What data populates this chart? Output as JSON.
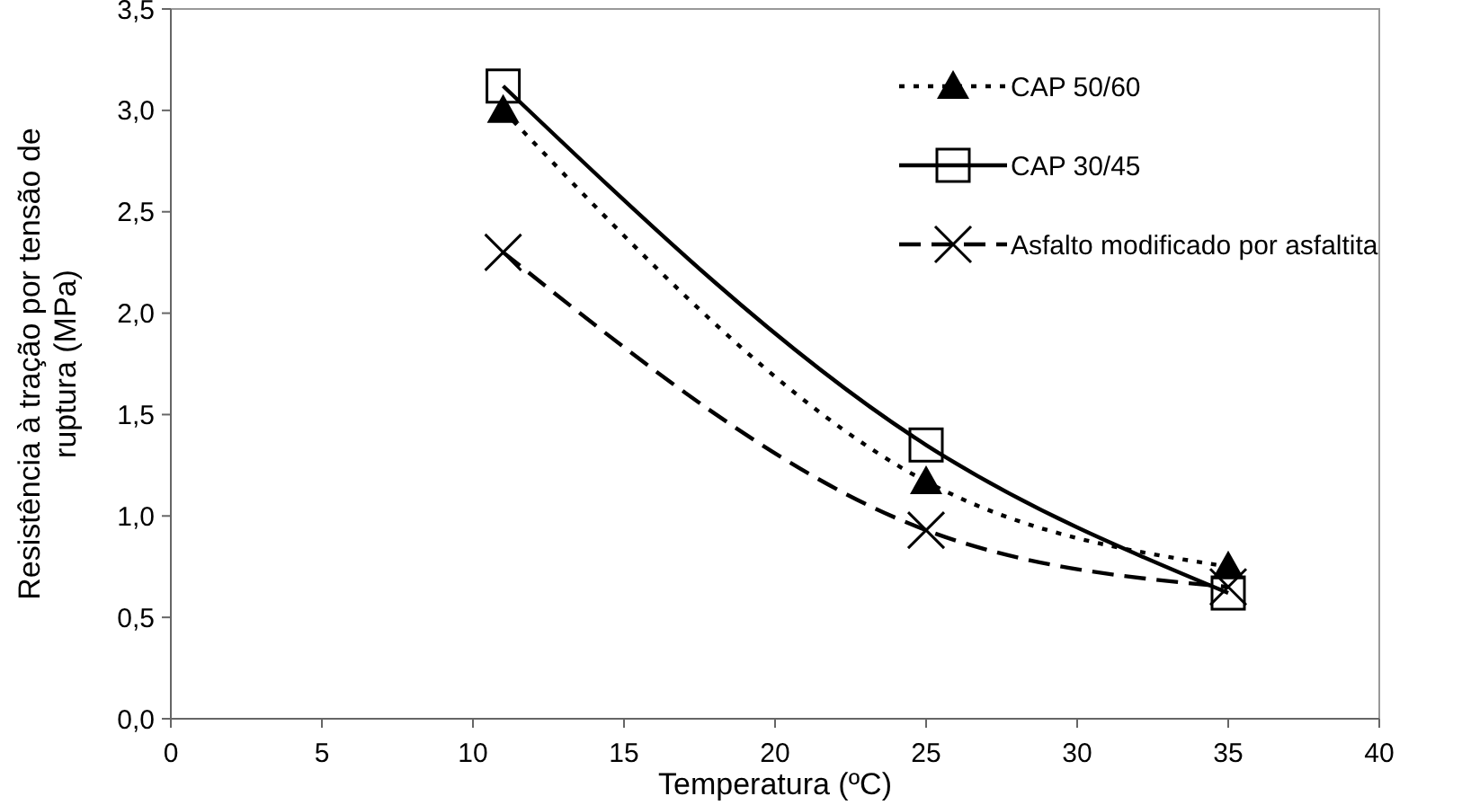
{
  "chart_data": {
    "type": "line",
    "xlabel": "Temperatura  (ºC)",
    "ylabel": "Resistência à tração por tensão de ruptura (MPa)",
    "x": [
      11,
      25,
      35
    ],
    "series": [
      {
        "name": "CAP 50/60",
        "color": "#000000",
        "values": [
          3.0,
          1.17,
          0.75
        ],
        "marker": "triangle",
        "line_style": "dotted"
      },
      {
        "name": "CAP 30/45",
        "color": "#000000",
        "values": [
          3.12,
          1.35,
          0.62
        ],
        "marker": "square",
        "line_style": "solid"
      },
      {
        "name": "Asfalto modificado por asfaltita",
        "color": "#000000",
        "values": [
          2.3,
          0.93,
          0.65
        ],
        "marker": "cross",
        "line_style": "dashed"
      }
    ],
    "xlim": [
      0,
      40
    ],
    "xticks": [
      0,
      5,
      10,
      15,
      20,
      25,
      30,
      35,
      40
    ],
    "ylim": [
      0,
      3.5
    ],
    "yticks": [
      {
        "value": 0,
        "label": "0,0"
      },
      {
        "value": 0.5,
        "label": "0,5"
      },
      {
        "value": 1,
        "label": "1,0"
      },
      {
        "value": 1.5,
        "label": "1,5"
      },
      {
        "value": 2,
        "label": "2,0"
      },
      {
        "value": 2.5,
        "label": "2,5"
      },
      {
        "value": 3,
        "label": "3,0"
      },
      {
        "value": 3.5,
        "label": "3,5"
      }
    ],
    "grid": false,
    "legend": "top right"
  }
}
